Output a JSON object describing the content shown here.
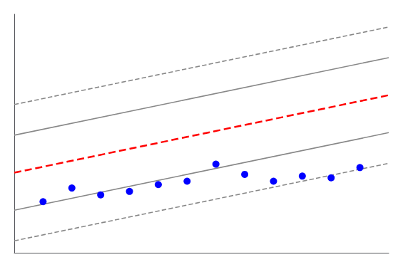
{
  "chart_data": {
    "type": "scatter",
    "xlim": [
      1982.0,
      1995.0
    ],
    "ylim": [
      0.04,
      0.18
    ],
    "tick_labels": false,
    "grid": false,
    "series": [
      {
        "type": "line",
        "line_style": "dashed",
        "color": "#888888",
        "x": [
          1982,
          1995
        ],
        "values": [
          0.127,
          0.1725
        ]
      },
      {
        "type": "line",
        "line_style": "dashed",
        "color": "#888888",
        "x": [
          1982,
          1995
        ],
        "values": [
          0.047,
          0.0925
        ]
      },
      {
        "type": "line",
        "line_style": "solid",
        "color": "#888888",
        "x": [
          1982,
          1995
        ],
        "values": [
          0.109,
          0.1545
        ]
      },
      {
        "type": "line",
        "line_style": "solid",
        "color": "#888888",
        "x": [
          1982,
          1995
        ],
        "values": [
          0.065,
          0.1105
        ]
      },
      {
        "type": "line",
        "line_style": "dashed",
        "color": "#ff0000",
        "x": [
          1982,
          1995
        ],
        "values": [
          0.087,
          0.1325
        ]
      },
      {
        "type": "scatter",
        "marker": "circle",
        "color": "#0000ff",
        "x": [
          1983,
          1984,
          1985,
          1986,
          1987,
          1988,
          1989,
          1990,
          1991,
          1992,
          1993,
          1994
        ],
        "values": [
          0.07,
          0.078,
          0.074,
          0.076,
          0.08,
          0.082,
          0.092,
          0.086,
          0.082,
          0.085,
          0.084,
          0.09
        ]
      }
    ]
  }
}
